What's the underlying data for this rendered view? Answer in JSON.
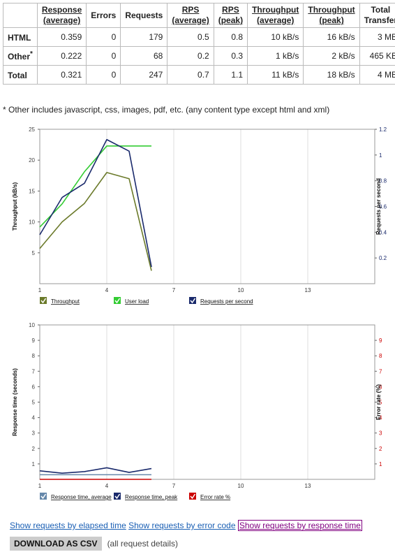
{
  "table": {
    "headers": [
      {
        "line1": "",
        "line2": "",
        "underline": false
      },
      {
        "line1": "Response",
        "line2": "(average)",
        "underline": true
      },
      {
        "line1": "Errors",
        "line2": "",
        "underline": false
      },
      {
        "line1": "Requests",
        "line2": "",
        "underline": false
      },
      {
        "line1": "RPS",
        "line2": "(average)",
        "underline": true
      },
      {
        "line1": "RPS",
        "line2": "(peak)",
        "underline": true
      },
      {
        "line1": "Throughput",
        "line2": "(average)",
        "underline": true
      },
      {
        "line1": "Throughput",
        "line2": "(peak)",
        "underline": true
      },
      {
        "line1": "Total",
        "line2": "Transfer",
        "underline": false
      }
    ],
    "rows": [
      {
        "label": "HTML",
        "sup": "",
        "cells": [
          "0.359",
          "0",
          "179",
          "0.5",
          "0.8",
          "10 kB/s",
          "16 kB/s",
          "3 MB"
        ]
      },
      {
        "label": "Other",
        "sup": "*",
        "cells": [
          "0.222",
          "0",
          "68",
          "0.2",
          "0.3",
          "1 kB/s",
          "2 kB/s",
          "465 KB"
        ]
      },
      {
        "label": "Total",
        "sup": "",
        "cells": [
          "0.321",
          "0",
          "247",
          "0.7",
          "1.1",
          "11 kB/s",
          "18 kB/s",
          "4 MB"
        ]
      }
    ]
  },
  "footnote": "* Other includes javascript, css, images, pdf, etc. (any content type except html and xml)",
  "chart_data": [
    {
      "type": "line",
      "ylabel": "Throughput (kB/s)",
      "y2label": "Requests per second",
      "xlim": [
        1,
        16
      ],
      "ylim": [
        0,
        25
      ],
      "y2lim": [
        0,
        1.2
      ],
      "xticks": [
        1,
        4,
        7,
        10,
        13
      ],
      "yticks": [
        5,
        10,
        15,
        20,
        25
      ],
      "y2ticks": [
        0.2,
        0.4,
        0.6,
        0.8,
        1.0,
        1.2
      ],
      "grid": true,
      "legend_position": "bottom",
      "colors": {
        "left_axis": "#444444",
        "right_axis": "#1a2a6c"
      },
      "series": [
        {
          "name": "Throughput",
          "axis": "left",
          "color": "#6b7a2a",
          "x": [
            1,
            2,
            3,
            4,
            5,
            6
          ],
          "values": [
            5.7,
            10,
            13,
            18,
            17,
            2.1
          ]
        },
        {
          "name": "User load",
          "axis": "right",
          "color": "#33cc33",
          "x": [
            1,
            2,
            3,
            4,
            5,
            6
          ],
          "values": [
            0.44,
            0.62,
            0.87,
            1.07,
            1.07,
            1.07
          ]
        },
        {
          "name": "Requests per second",
          "axis": "right",
          "color": "#1a2a6c",
          "x": [
            1,
            2,
            3,
            4,
            5,
            6
          ],
          "values": [
            0.38,
            0.67,
            0.78,
            1.12,
            1.03,
            0.13
          ]
        }
      ]
    },
    {
      "type": "line",
      "ylabel": "Response time (seconds)",
      "y2label": "Error rate (%)",
      "xlim": [
        1,
        16
      ],
      "ylim": [
        0,
        10
      ],
      "y2lim": [
        0,
        10
      ],
      "xticks": [
        1,
        4,
        7,
        10,
        13
      ],
      "yticks": [
        1,
        2,
        3,
        4,
        5,
        6,
        7,
        8,
        9,
        10
      ],
      "y2ticks": [
        1,
        2,
        3,
        4,
        5,
        6,
        7,
        8,
        9
      ],
      "grid": true,
      "legend_position": "bottom",
      "colors": {
        "left_axis": "#444444",
        "right_axis": "#cc0000"
      },
      "series": [
        {
          "name": "Response time, average",
          "axis": "left",
          "color": "#6688aa",
          "x": [
            1,
            2,
            3,
            4,
            5,
            6
          ],
          "values": [
            0.3,
            0.3,
            0.3,
            0.3,
            0.3,
            0.3
          ]
        },
        {
          "name": "Response time, peak",
          "axis": "left",
          "color": "#1a2a6c",
          "x": [
            1,
            2,
            3,
            4,
            5,
            6
          ],
          "values": [
            0.55,
            0.4,
            0.5,
            0.75,
            0.45,
            0.7
          ]
        },
        {
          "name": "Error rate %",
          "axis": "right",
          "color": "#cc0000",
          "x": [
            1,
            2,
            3,
            4,
            5,
            6
          ],
          "values": [
            0,
            0,
            0,
            0,
            0,
            0
          ]
        }
      ]
    }
  ],
  "links": {
    "elapsed": "Show requests by elapsed time",
    "error": "Show requests by error code",
    "response": "Show requests by response time"
  },
  "download": {
    "label": "DOWNLOAD AS CSV",
    "note": "(all request details)"
  }
}
